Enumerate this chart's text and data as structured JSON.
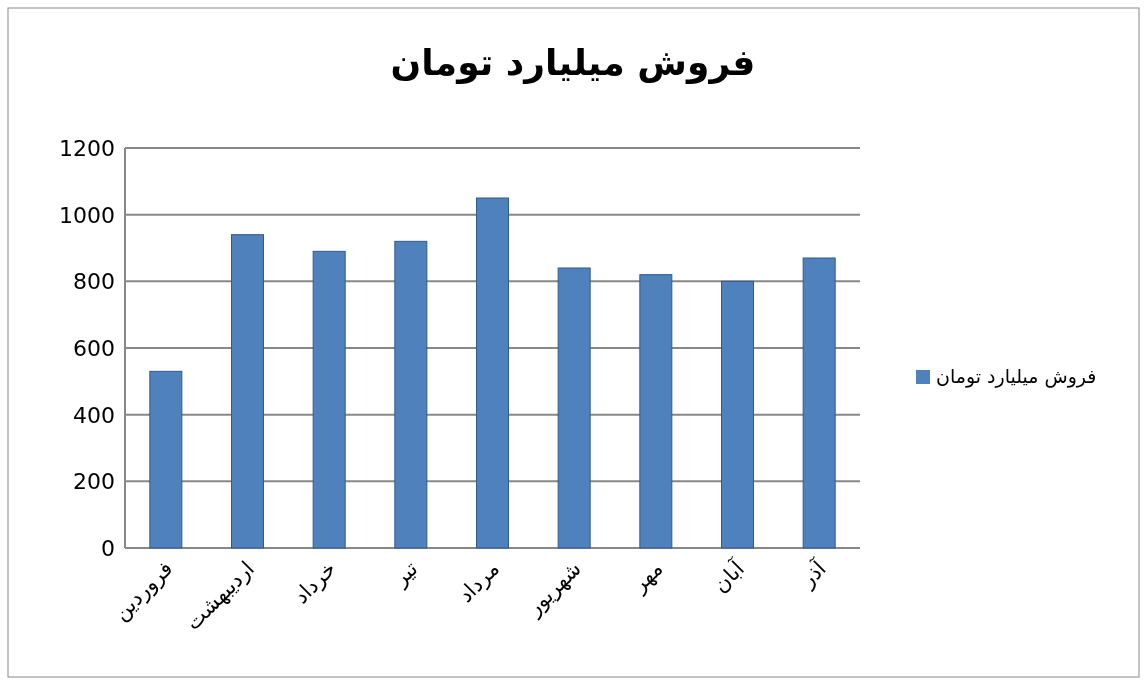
{
  "chart_data": {
    "type": "bar",
    "title": "فروش میلیارد تومان",
    "categories": [
      "فروردین",
      "اردیبهشت",
      "خرداد",
      "تیر",
      "مرداد",
      "شهریور",
      "مهر",
      "آبان",
      "آذر"
    ],
    "series": [
      {
        "name": "فروش میلیارد تومان",
        "color": "#4f81bd",
        "values": [
          530,
          940,
          890,
          920,
          1050,
          840,
          820,
          800,
          870
        ]
      }
    ],
    "ylim": [
      0,
      1200
    ],
    "yticks": [
      0,
      200,
      400,
      600,
      800,
      1000,
      1200
    ],
    "grid": "y",
    "legend": "right"
  }
}
